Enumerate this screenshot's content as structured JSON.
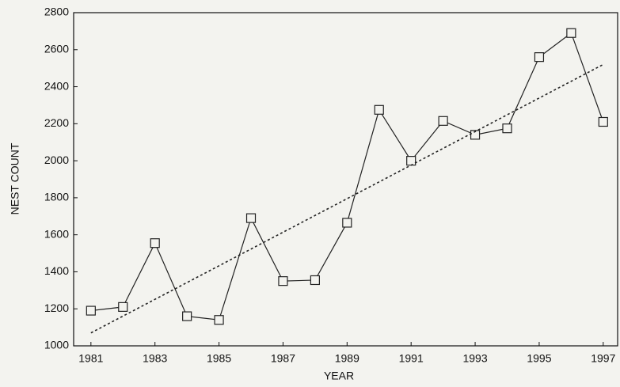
{
  "chart_data": {
    "type": "line",
    "xlabel": "YEAR",
    "ylabel": "NEST COUNT",
    "x": [
      1981,
      1982,
      1983,
      1984,
      1985,
      1986,
      1987,
      1988,
      1989,
      1990,
      1991,
      1992,
      1993,
      1994,
      1995,
      1996,
      1997
    ],
    "series": [
      {
        "color": "#222222",
        "marker": "square",
        "values": [
          1190,
          1210,
          1555,
          1160,
          1140,
          1690,
          1350,
          1355,
          1665,
          2275,
          2000,
          2215,
          2140,
          2175,
          2560,
          2690,
          2210
        ]
      },
      {
        "color": "#222222",
        "dashed": true,
        "x": [
          1981,
          1997
        ],
        "values": [
          1070,
          2520
        ]
      }
    ],
    "xlim": [
      1980.46,
      1997.45
    ],
    "xticks": [
      1981,
      1983,
      1985,
      1987,
      1989,
      1991,
      1993,
      1995,
      1997
    ],
    "ylim": [
      1000,
      2800
    ],
    "yticks": [
      1000,
      1200,
      1400,
      1600,
      1800,
      2000,
      2200,
      2400,
      2600,
      2800
    ]
  }
}
